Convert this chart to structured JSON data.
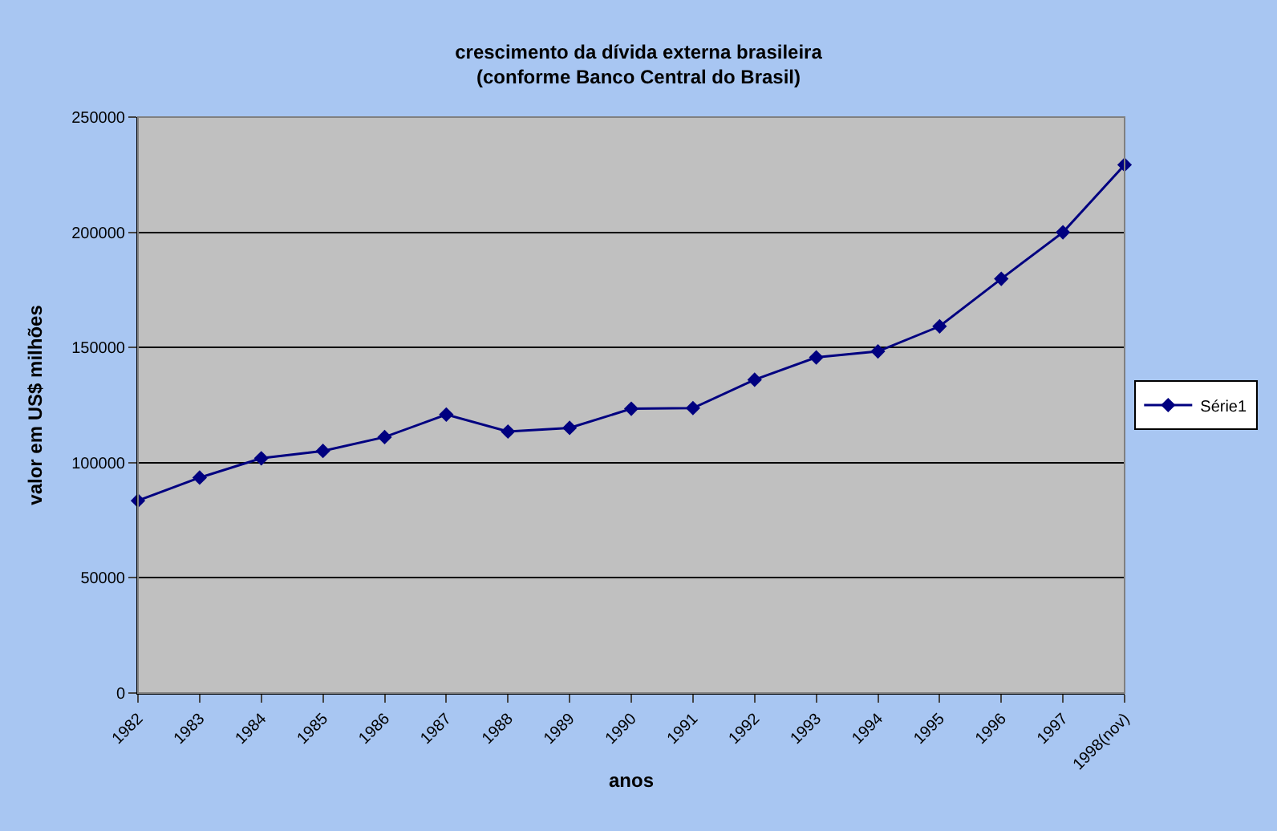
{
  "chart_data": {
    "type": "line",
    "title": "crescimento da dívida externa brasileira\n(conforme Banco Central do Brasil)",
    "xlabel": "anos",
    "ylabel": "valor em US$ milhões",
    "categories": [
      "1982",
      "1983",
      "1984",
      "1985",
      "1986",
      "1987",
      "1988",
      "1989",
      "1990",
      "1991",
      "1992",
      "1993",
      "1994",
      "1995",
      "1996",
      "1997",
      "1998(nov)"
    ],
    "series": [
      {
        "name": "Série1",
        "color": "#000080",
        "values": [
          83500,
          93500,
          101900,
          105100,
          111100,
          120900,
          113500,
          115100,
          123400,
          123700,
          136000,
          145700,
          148300,
          159200,
          179800,
          200000,
          229300
        ]
      }
    ],
    "ylim": [
      0,
      250000
    ],
    "yticks": [
      0,
      50000,
      100000,
      150000,
      200000,
      250000
    ],
    "grid": "y",
    "legend": "right",
    "marker": "diamond",
    "line_style": "solid"
  }
}
